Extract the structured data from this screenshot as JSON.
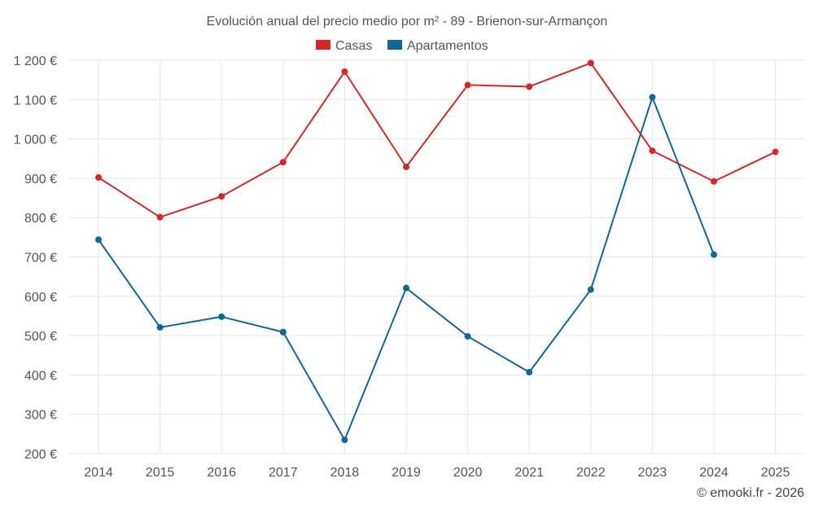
{
  "chart_data": {
    "type": "line",
    "title": "Evolución anual del precio medio por m² - 89 - Brienon-sur-Armançon",
    "categories": [
      "2014",
      "2015",
      "2016",
      "2017",
      "2018",
      "2019",
      "2020",
      "2021",
      "2022",
      "2023",
      "2024",
      "2025"
    ],
    "series": [
      {
        "name": "Casas",
        "color": "#d62728",
        "values": [
          902,
          801,
          854,
          941,
          1171,
          929,
          1137,
          1133,
          1193,
          970,
          892,
          967
        ]
      },
      {
        "name": "Apartamentos",
        "color": "#0e6798",
        "values": [
          744,
          521,
          548,
          509,
          235,
          621,
          498,
          407,
          617,
          1106,
          706,
          null
        ]
      }
    ],
    "yticks": [
      "1 200 €",
      "1 100 €",
      "1 000 €",
      "900 €",
      "800 €",
      "700 €",
      "600 €",
      "500 €",
      "400 €",
      "300 €",
      "200 €"
    ],
    "ytick_values": [
      1200,
      1100,
      1000,
      900,
      800,
      700,
      600,
      500,
      400,
      300,
      200
    ],
    "ylim": [
      200,
      1200
    ],
    "xlabel": "",
    "ylabel": "",
    "grid": true,
    "legend_position": "top-center",
    "credit": "© emooki.fr - 2026"
  }
}
